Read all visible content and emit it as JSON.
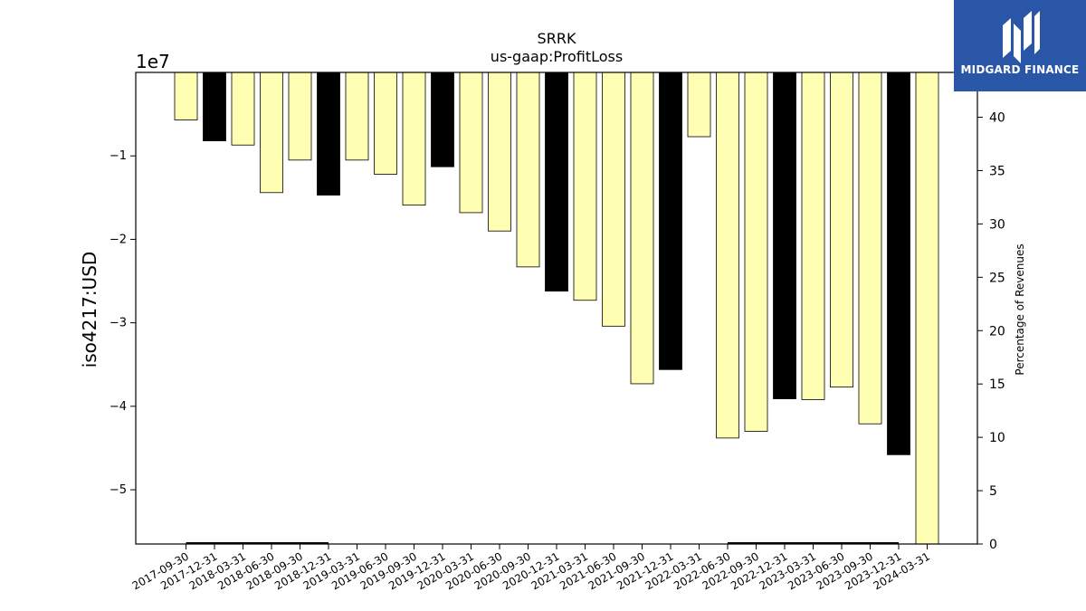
{
  "brand": {
    "name": "MIDGARD FINANCE",
    "logo_icon": "stylized-m-logo-icon",
    "background": "#2a56a8"
  },
  "chart_data": {
    "type": "bar",
    "title": "SRRK",
    "subtitle": "us-gaap:ProfitLoss",
    "ylabel": "iso4217:USD",
    "y_offset_label": "1e7",
    "y2label": "Percentage of Revenues",
    "ylim": [
      -5.65,
      0
    ],
    "y_ticks": [
      -1,
      -2,
      -3,
      -4,
      -5
    ],
    "y_tick_labels": [
      "−1",
      "−2",
      "−3",
      "−4",
      "−5"
    ],
    "y2lim": [
      0,
      44.2
    ],
    "y2_ticks": [
      0,
      5,
      10,
      15,
      20,
      25,
      30,
      35,
      40
    ],
    "categories": [
      "2017-09-30",
      "2017-12-31",
      "2018-03-31",
      "2018-06-30",
      "2018-09-30",
      "2018-12-31",
      "2019-03-31",
      "2019-06-30",
      "2019-09-30",
      "2019-12-31",
      "2020-03-31",
      "2020-06-30",
      "2020-09-30",
      "2020-12-31",
      "2021-03-31",
      "2021-06-30",
      "2021-09-30",
      "2021-12-31",
      "2022-03-31",
      "2022-06-30",
      "2022-09-30",
      "2022-12-31",
      "2023-03-31",
      "2023-06-30",
      "2023-09-30",
      "2023-12-31",
      "2024-03-31"
    ],
    "values": [
      -0.57,
      -0.82,
      -0.87,
      -1.44,
      -1.05,
      -1.47,
      -1.05,
      -1.22,
      -1.59,
      -1.13,
      -1.68,
      -1.9,
      -2.33,
      -2.62,
      -2.73,
      -3.04,
      -3.73,
      -3.56,
      -0.77,
      -4.38,
      -4.3,
      -3.91,
      -3.92,
      -3.77,
      -4.21,
      -4.58,
      -5.65
    ],
    "bar_colors": [
      "#ffffb3",
      "#000000",
      "#ffffb3",
      "#ffffb3",
      "#ffffb3",
      "#000000",
      "#ffffb3",
      "#ffffb3",
      "#ffffb3",
      "#000000",
      "#ffffb3",
      "#ffffb3",
      "#ffffb3",
      "#000000",
      "#ffffb3",
      "#ffffb3",
      "#ffffb3",
      "#000000",
      "#ffffb3",
      "#ffffb3",
      "#ffffb3",
      "#000000",
      "#ffffb3",
      "#ffffb3",
      "#ffffb3",
      "#000000",
      "#ffffb3"
    ],
    "revenue_pct_series": {
      "values": [
        0,
        0,
        0,
        0,
        0,
        0,
        null,
        null,
        null,
        null,
        null,
        null,
        null,
        null,
        null,
        null,
        null,
        null,
        null,
        0,
        0,
        0,
        0,
        0,
        0,
        0,
        null
      ]
    },
    "grid": false,
    "legend": "none"
  }
}
